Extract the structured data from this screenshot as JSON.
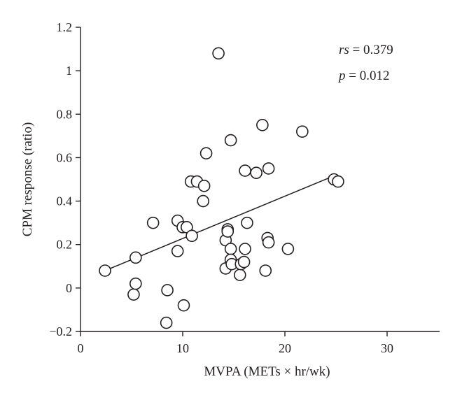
{
  "chart_data": {
    "type": "scatter",
    "xlabel": "MVPA (METs × hr/wk)",
    "ylabel": "CPM response (ratio)",
    "xlim": [
      0,
      35
    ],
    "ylim": [
      -0.2,
      1.2
    ],
    "x_ticks": [
      {
        "value": 0,
        "label": "0"
      },
      {
        "value": 10,
        "label": "10"
      },
      {
        "value": 20,
        "label": "20"
      },
      {
        "value": 30,
        "label": "30"
      }
    ],
    "y_ticks": [
      {
        "value": -0.2,
        "label": "−0.2"
      },
      {
        "value": 0,
        "label": "0"
      },
      {
        "value": 0.2,
        "label": "0.2"
      },
      {
        "value": 0.4,
        "label": "0.4"
      },
      {
        "value": 0.6,
        "label": "0.6"
      },
      {
        "value": 0.8,
        "label": "0.8"
      },
      {
        "value": 1.0,
        "label": "1"
      },
      {
        "value": 1.2,
        "label": "1.2"
      }
    ],
    "points": [
      [
        2.4,
        0.08
      ],
      [
        5.2,
        -0.03
      ],
      [
        5.4,
        0.02
      ],
      [
        5.4,
        0.14
      ],
      [
        7.1,
        0.3
      ],
      [
        8.4,
        -0.16
      ],
      [
        8.5,
        -0.01
      ],
      [
        9.5,
        0.31
      ],
      [
        9.5,
        0.17
      ],
      [
        10.0,
        0.28
      ],
      [
        10.1,
        -0.08
      ],
      [
        10.4,
        0.28
      ],
      [
        10.9,
        0.24
      ],
      [
        10.8,
        0.49
      ],
      [
        11.4,
        0.49
      ],
      [
        12.0,
        0.4
      ],
      [
        12.1,
        0.47
      ],
      [
        12.3,
        0.62
      ],
      [
        13.5,
        1.08
      ],
      [
        14.2,
        0.09
      ],
      [
        14.2,
        0.22
      ],
      [
        14.4,
        0.27
      ],
      [
        14.4,
        0.26
      ],
      [
        14.7,
        0.68
      ],
      [
        14.7,
        0.18
      ],
      [
        14.7,
        0.13
      ],
      [
        14.8,
        0.11
      ],
      [
        15.6,
        0.06
      ],
      [
        15.7,
        0.11
      ],
      [
        16.0,
        0.12
      ],
      [
        16.1,
        0.18
      ],
      [
        16.1,
        0.54
      ],
      [
        16.3,
        0.3
      ],
      [
        17.2,
        0.53
      ],
      [
        17.8,
        0.75
      ],
      [
        18.1,
        0.08
      ],
      [
        18.3,
        0.23
      ],
      [
        18.4,
        0.21
      ],
      [
        18.4,
        0.55
      ],
      [
        20.3,
        0.18
      ],
      [
        21.7,
        0.72
      ],
      [
        24.8,
        0.5
      ],
      [
        25.2,
        0.49
      ]
    ],
    "regression_line": {
      "x": [
        2.4,
        25.0
      ],
      "y": [
        0.08,
        0.52
      ]
    },
    "annotations": [
      {
        "name": "rs",
        "label": "rs",
        "value": "= 0.379"
      },
      {
        "name": "p",
        "label": "p",
        "value": "= 0.012"
      }
    ]
  }
}
